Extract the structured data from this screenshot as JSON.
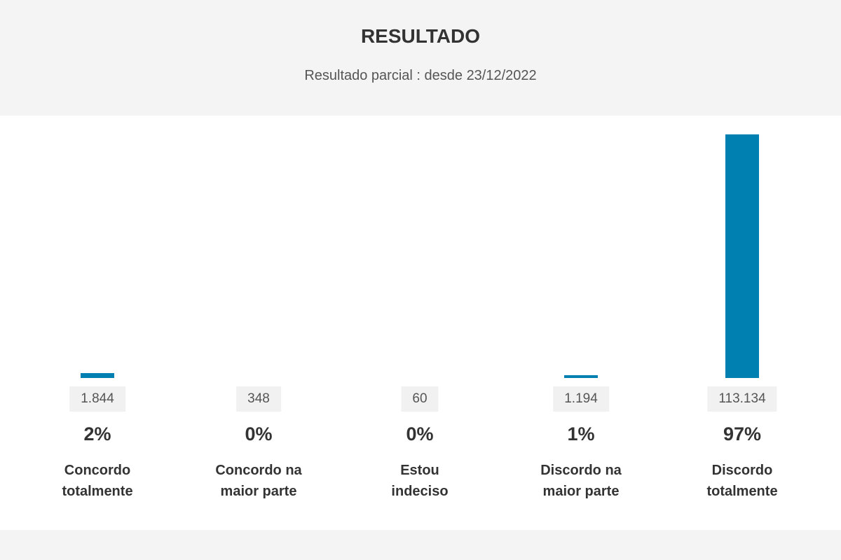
{
  "chart_data": {
    "type": "bar",
    "title": "RESULTADO",
    "subtitle": "Resultado parcial : desde 23/12/2022",
    "categories": [
      "Concordo totalmente",
      "Concordo na maior parte",
      "Estou indeciso",
      "Discordo na maior parte",
      "Discordo totalmente"
    ],
    "values": [
      1844,
      348,
      60,
      1194,
      113134
    ],
    "value_labels": [
      "1.844",
      "348",
      "60",
      "1.194",
      "113.134"
    ],
    "percentages": [
      2,
      0,
      0,
      1,
      97
    ],
    "percentage_labels": [
      "2%",
      "0%",
      "0%",
      "1%",
      "97%"
    ],
    "color": "#0080b0"
  }
}
